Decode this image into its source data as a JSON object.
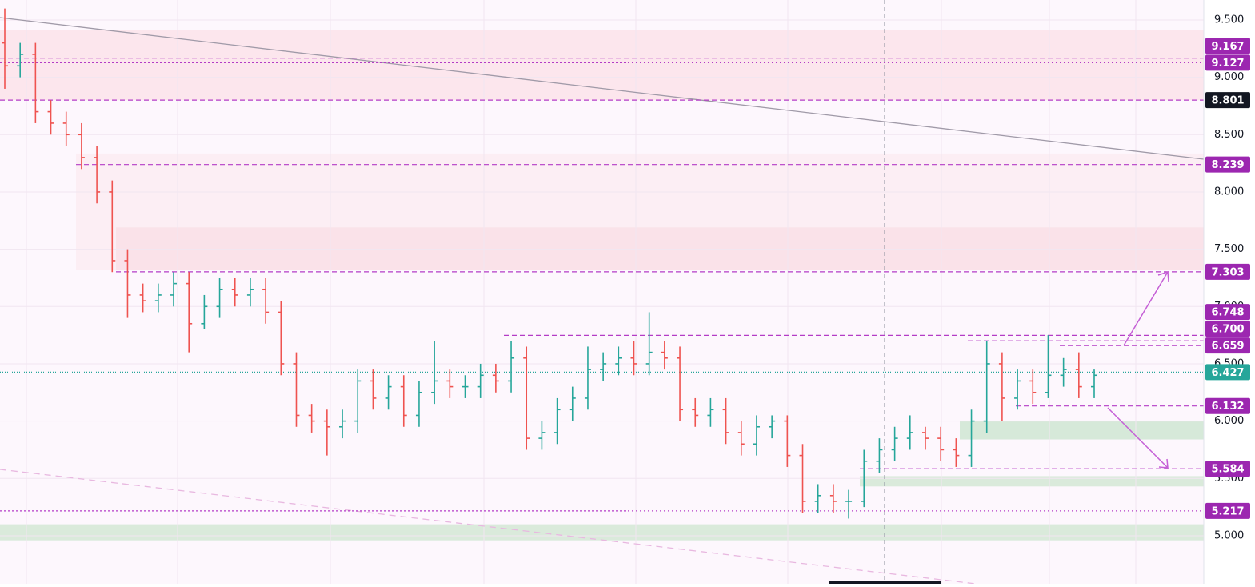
{
  "chart_data": {
    "type": "ohlc",
    "ylim": [
      4.581,
      9.674
    ],
    "yticks": [
      {
        "value": 9.5,
        "label": "9.500"
      },
      {
        "value": 9,
        "label": "9.000"
      },
      {
        "value": 8.5,
        "label": "8.500"
      },
      {
        "value": 8,
        "label": "8.000"
      },
      {
        "value": 7.5,
        "label": "7.500"
      },
      {
        "value": 7,
        "label": "7.000"
      },
      {
        "value": 6.5,
        "label": "6.500"
      },
      {
        "value": 6,
        "label": "6.000"
      },
      {
        "value": 5.5,
        "label": "5.500"
      },
      {
        "value": 5,
        "label": "5.000"
      }
    ],
    "up_color": "#26a69a",
    "down_color": "#ef5350",
    "open": [
      9.3,
      9.1,
      9.2,
      8.7,
      8.6,
      8.5,
      8.3,
      8.0,
      7.4,
      7.1,
      7.05,
      7.1,
      7.2,
      6.85,
      7.0,
      7.15,
      7.1,
      7.15,
      6.95,
      6.5,
      6.05,
      6.0,
      5.95,
      6.0,
      6.35,
      6.2,
      6.3,
      6.05,
      6.25,
      6.35,
      6.3,
      6.3,
      6.4,
      6.35,
      6.55,
      5.85,
      5.9,
      6.1,
      6.2,
      6.45,
      6.5,
      6.55,
      6.5,
      6.6,
      6.55,
      6.1,
      6.05,
      6.1,
      5.9,
      5.8,
      5.95,
      6.0,
      5.7,
      5.3,
      5.35,
      5.3,
      5.3,
      5.65,
      5.75,
      5.85,
      5.9,
      5.85,
      5.75,
      5.7,
      6.0,
      6.5,
      6.2,
      6.35,
      6.25,
      6.4,
      6.45,
      6.3
    ],
    "high": [
      9.6,
      9.3,
      9.3,
      8.8,
      8.7,
      8.6,
      8.4,
      8.1,
      7.5,
      7.2,
      7.2,
      7.3,
      7.3,
      7.1,
      7.25,
      7.25,
      7.25,
      7.25,
      7.05,
      6.6,
      6.15,
      6.1,
      6.1,
      6.45,
      6.45,
      6.4,
      6.4,
      6.35,
      6.7,
      6.45,
      6.4,
      6.5,
      6.5,
      6.7,
      6.65,
      6.0,
      6.2,
      6.3,
      6.65,
      6.6,
      6.65,
      6.7,
      6.95,
      6.7,
      6.65,
      6.2,
      6.2,
      6.2,
      6.0,
      6.05,
      6.05,
      6.05,
      5.8,
      5.45,
      5.45,
      5.4,
      5.75,
      5.85,
      5.95,
      6.05,
      5.95,
      5.95,
      5.85,
      6.1,
      6.7,
      6.6,
      6.45,
      6.45,
      6.75,
      6.55,
      6.6,
      6.45
    ],
    "low": [
      8.9,
      9.0,
      8.6,
      8.5,
      8.4,
      8.2,
      7.9,
      7.3,
      6.9,
      6.95,
      6.95,
      7.0,
      6.6,
      6.8,
      6.9,
      7.0,
      7.0,
      6.85,
      6.4,
      5.95,
      5.9,
      5.7,
      5.85,
      5.9,
      6.1,
      6.1,
      5.95,
      5.95,
      6.15,
      6.2,
      6.2,
      6.2,
      6.25,
      6.25,
      5.75,
      5.75,
      5.8,
      6.0,
      6.1,
      6.35,
      6.4,
      6.4,
      6.4,
      6.45,
      6.0,
      5.95,
      5.95,
      5.8,
      5.7,
      5.7,
      5.85,
      5.6,
      5.2,
      5.2,
      5.2,
      5.15,
      5.25,
      5.55,
      5.65,
      5.75,
      5.75,
      5.65,
      5.6,
      5.6,
      5.9,
      6.0,
      6.1,
      6.15,
      6.2,
      6.3,
      6.2,
      6.2
    ],
    "close": [
      9.1,
      9.2,
      8.7,
      8.6,
      8.5,
      8.3,
      8.0,
      7.4,
      7.1,
      7.05,
      7.1,
      7.2,
      6.85,
      7.0,
      7.15,
      7.1,
      7.15,
      6.95,
      6.5,
      6.05,
      6.0,
      5.95,
      6.0,
      6.35,
      6.2,
      6.3,
      6.05,
      6.25,
      6.35,
      6.3,
      6.3,
      6.4,
      6.35,
      6.55,
      5.85,
      5.9,
      6.1,
      6.2,
      6.45,
      6.5,
      6.55,
      6.5,
      6.6,
      6.55,
      6.1,
      6.05,
      6.1,
      5.9,
      5.8,
      5.95,
      6.0,
      5.7,
      5.3,
      5.35,
      5.3,
      5.3,
      5.65,
      5.75,
      5.85,
      5.9,
      5.85,
      5.75,
      5.7,
      6.0,
      6.5,
      6.2,
      6.35,
      6.25,
      6.4,
      6.45,
      6.3,
      6.4
    ],
    "zones": [
      {
        "low": 8.801,
        "high": 9.41,
        "color": "#fbe3ea"
      },
      {
        "low": 7.32,
        "high": 8.335,
        "color": "#fbecf2"
      },
      {
        "low": 7.32,
        "high": 7.69,
        "color": "#f9dfe6"
      },
      {
        "low": 5.84,
        "high": 6.0,
        "color": "#cfe6d2"
      },
      {
        "low": 5.43,
        "high": 5.52,
        "color": "#d3e8d5"
      },
      {
        "low": 4.96,
        "high": 5.1,
        "color": "#d3e8d5"
      }
    ],
    "levels": [
      {
        "price": 9.167,
        "style": "dashed",
        "color": "#9c27b0"
      },
      {
        "price": 9.127,
        "style": "dotted",
        "color": "#9c27b0"
      },
      {
        "price": 8.801,
        "style": "dashed",
        "color": "#131722"
      },
      {
        "price": 8.239,
        "style": "dashed",
        "color": "#9c27b0"
      },
      {
        "price": 7.303,
        "style": "dashed",
        "color": "#9c27b0"
      },
      {
        "price": 6.748,
        "style": "dashed",
        "color": "#9c27b0"
      },
      {
        "price": 6.7,
        "label": "6.700",
        "style": "dashed",
        "color": "#9c27b0"
      },
      {
        "price": 6.659,
        "style": "dashed",
        "color": "#9c27b0"
      },
      {
        "price": 6.427,
        "style": "current",
        "color": "#26a69a"
      },
      {
        "price": 6.132,
        "style": "dashed",
        "color": "#9c27b0"
      },
      {
        "price": 5.584,
        "style": "dashed",
        "color": "#9c27b0"
      },
      {
        "price": 5.217,
        "style": "dotted",
        "color": "#9c27b0"
      }
    ]
  }
}
